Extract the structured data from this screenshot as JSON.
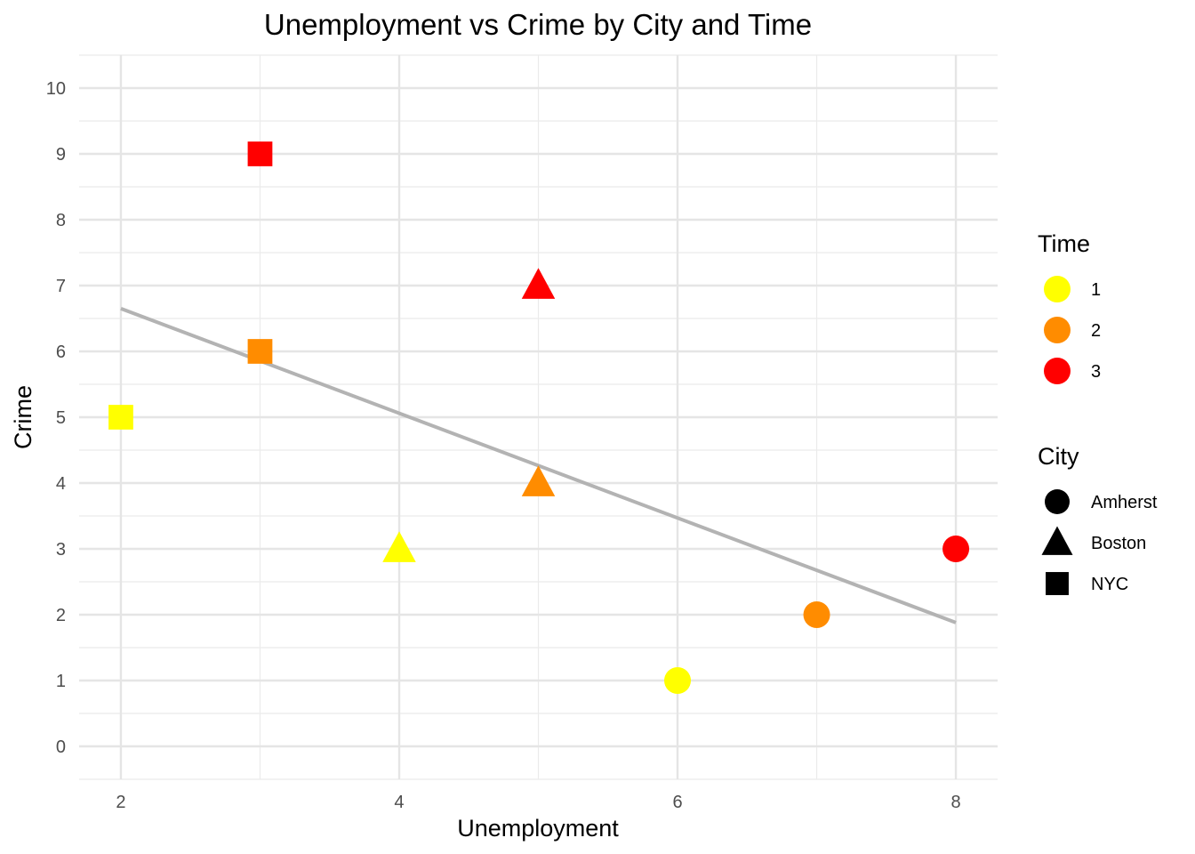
{
  "chart_data": {
    "type": "scatter",
    "title": "Unemployment vs Crime by City and Time",
    "xlabel": "Unemployment",
    "ylabel": "Crime",
    "xlim": [
      1.7,
      8.3
    ],
    "ylim": [
      -0.5,
      10.5
    ],
    "x_ticks": [
      2,
      4,
      6,
      8
    ],
    "y_ticks": [
      0,
      1,
      2,
      3,
      4,
      5,
      6,
      7,
      8,
      9,
      10
    ],
    "grid": true,
    "points": [
      {
        "city": "Amherst",
        "time": "1",
        "x": 6,
        "y": 1
      },
      {
        "city": "Amherst",
        "time": "2",
        "x": 7,
        "y": 2
      },
      {
        "city": "Amherst",
        "time": "3",
        "x": 8,
        "y": 3
      },
      {
        "city": "Boston",
        "time": "1",
        "x": 4,
        "y": 3
      },
      {
        "city": "Boston",
        "time": "2",
        "x": 5,
        "y": 4
      },
      {
        "city": "Boston",
        "time": "3",
        "x": 5,
        "y": 7
      },
      {
        "city": "NYC",
        "time": "1",
        "x": 2,
        "y": 5
      },
      {
        "city": "NYC",
        "time": "2",
        "x": 3,
        "y": 6
      },
      {
        "city": "NYC",
        "time": "3",
        "x": 3,
        "y": 9
      }
    ],
    "trend_line": {
      "x": [
        2,
        8
      ],
      "y": [
        6.65,
        1.88
      ],
      "color": "#b3b3b3"
    },
    "legend": {
      "position": "right",
      "time": {
        "title": "Time",
        "entries": [
          {
            "label": "1",
            "color": "#ffff00"
          },
          {
            "label": "2",
            "color": "#ff8c00"
          },
          {
            "label": "3",
            "color": "#ff0000"
          }
        ]
      },
      "city": {
        "title": "City",
        "entries": [
          {
            "label": "Amherst",
            "shape": "circle"
          },
          {
            "label": "Boston",
            "shape": "triangle"
          },
          {
            "label": "NYC",
            "shape": "square"
          }
        ]
      }
    }
  }
}
